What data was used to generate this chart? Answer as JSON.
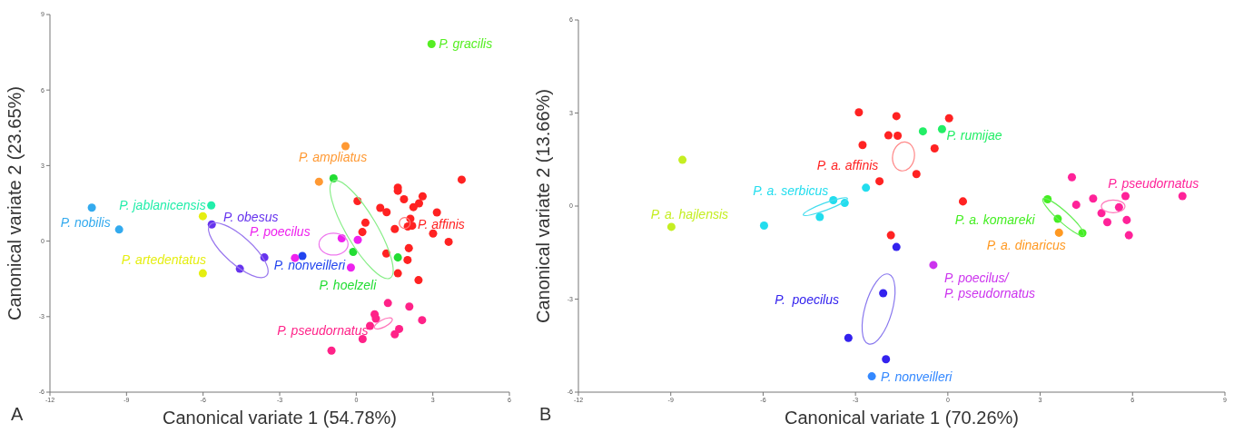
{
  "chart_data": [
    {
      "type": "scatter",
      "title": "A",
      "xlabel": "Canonical variate 1 (54.78%)",
      "ylabel": "Canonical variate 2 (23.65%)",
      "xlim": [
        -12,
        6
      ],
      "xticks": [
        -12,
        -9,
        -6,
        -3,
        0,
        3,
        6
      ],
      "ylim": [
        -6,
        9
      ],
      "yticks": [
        -6,
        -3,
        0,
        3,
        6,
        9
      ],
      "marker": "circle",
      "series": [
        {
          "name": "P. gracilis",
          "color": "#55ee22",
          "x": [
            2.95
          ],
          "values": [
            7.83
          ]
        },
        {
          "name": "P. ampliatus",
          "color": "#ff9933",
          "x": [
            -0.42,
            -1.46
          ],
          "values": [
            3.77,
            2.36
          ]
        },
        {
          "name": "P. hoelzeli",
          "color": "#22dd33",
          "x": [
            -0.89,
            -0.12,
            1.63
          ],
          "values": [
            2.49,
            -0.43,
            -0.65
          ]
        },
        {
          "name": "P. nobilis",
          "color": "#33aaee",
          "x": [
            -10.36,
            -9.29
          ],
          "values": [
            1.33,
            0.46
          ]
        },
        {
          "name": "P. jablanicensis",
          "color": "#22eeaa",
          "x": [
            -5.68
          ],
          "values": [
            1.42
          ]
        },
        {
          "name": "P. artedentatus",
          "color": "#e5ee11",
          "x": [
            -6.01,
            -6.01
          ],
          "values": [
            0.99,
            -1.28
          ]
        },
        {
          "name": "P. obesus",
          "color": "#6633ee",
          "x": [
            -5.66,
            -3.6,
            -4.56
          ],
          "values": [
            0.66,
            -0.65,
            -1.1
          ]
        },
        {
          "name": "P. nonveilleri",
          "color": "#2244ee",
          "x": [
            -2.11
          ],
          "values": [
            -0.59
          ]
        },
        {
          "name": "P. poecilus",
          "color": "#ee22ee",
          "x": [
            -0.57,
            0.06,
            -0.21,
            -2.4
          ],
          "values": [
            0.11,
            0.05,
            -1.05,
            -0.67
          ]
        },
        {
          "name": "P. affinis",
          "color": "#ff2222",
          "x": [
            0.05,
            1.63,
            1.63,
            1.87,
            2.6,
            2.46,
            2.24,
            0.94,
            1.19,
            0.36,
            0.24,
            1.51,
            2.12,
            2.02,
            2.19,
            3.16,
            3.01,
            3.62,
            4.13,
            1.18,
            2.06,
            2.01,
            1.63,
            2.44
          ],
          "values": [
            1.59,
            2.12,
            2.0,
            1.66,
            1.78,
            1.5,
            1.35,
            1.32,
            1.15,
            0.73,
            0.36,
            0.48,
            0.89,
            0.58,
            0.61,
            1.14,
            0.3,
            -0.03,
            2.44,
            -0.49,
            -0.28,
            -0.75,
            -1.28,
            -1.55
          ]
        },
        {
          "name": "P. pseudornatus",
          "color": "#ff2288",
          "x": [
            1.24,
            2.08,
            0.72,
            0.77,
            2.58,
            0.54,
            1.68,
            1.51,
            0.25,
            -0.97
          ],
          "values": [
            -2.46,
            -2.6,
            -2.91,
            -3.08,
            -3.14,
            -3.37,
            -3.49,
            -3.7,
            -3.89,
            -4.35
          ]
        }
      ]
    },
    {
      "type": "scatter",
      "title": "B",
      "xlabel": "Canonical variate 1 (70.26%)",
      "ylabel": "Canonical variate 2 (13.66%)",
      "xlim": [
        -12,
        9
      ],
      "xticks": [
        -12,
        -9,
        -6,
        -3,
        0,
        3,
        6,
        9
      ],
      "ylim": [
        -6,
        6
      ],
      "yticks": [
        -6,
        -3,
        0,
        3,
        6
      ],
      "marker": "circle",
      "series": [
        {
          "name": "P. a. hajlensis",
          "color": "#c5ee22",
          "x": [
            -8.62,
            -8.98
          ],
          "values": [
            1.49,
            -0.67
          ]
        },
        {
          "name": "P. a. serbicus",
          "color": "#22ddee",
          "x": [
            -2.66,
            -3.72,
            -3.35,
            -4.16,
            -5.97
          ],
          "values": [
            0.59,
            0.19,
            0.1,
            -0.35,
            -0.63
          ]
        },
        {
          "name": "P. a. affinis",
          "color": "#ff2222",
          "x": [
            -2.89,
            -1.67,
            0.04,
            -1.93,
            -1.63,
            -2.77,
            -0.43,
            -1.02,
            -2.22,
            0.49,
            -1.85
          ],
          "values": [
            3.02,
            2.9,
            2.83,
            2.28,
            2.27,
            1.97,
            1.86,
            1.03,
            0.8,
            0.15,
            -0.94
          ]
        },
        {
          "name": "P. rumijae",
          "color": "#22ee66",
          "x": [
            -0.81,
            -0.19
          ],
          "values": [
            2.41,
            2.48
          ]
        },
        {
          "name": "P. a. komareki",
          "color": "#44ee22",
          "x": [
            3.24,
            3.57,
            4.37
          ],
          "values": [
            0.22,
            -0.41,
            -0.87
          ]
        },
        {
          "name": "P. a. dinaricus",
          "color": "#ff9922",
          "x": [
            3.61
          ],
          "values": [
            -0.86
          ]
        },
        {
          "name": "P. pseudornatus",
          "color": "#ff2299",
          "x": [
            4.03,
            4.17,
            4.72,
            4.99,
            5.18,
            5.56,
            5.77,
            5.81,
            5.88,
            7.62
          ],
          "values": [
            0.93,
            0.04,
            0.24,
            -0.23,
            -0.52,
            -0.04,
            0.32,
            -0.45,
            -0.94,
            0.32
          ]
        },
        {
          "name": "P. poecilus/ P. pseudornatus",
          "color": "#cc33ee",
          "x": [
            -0.47
          ],
          "values": [
            -1.9
          ]
        },
        {
          "name": "P.  poecilus",
          "color": "#3322ee",
          "x": [
            -2.1,
            -1.67,
            -3.23,
            -2.01
          ],
          "values": [
            -2.81,
            -1.32,
            -4.25,
            -4.94
          ]
        },
        {
          "name": "P. nonveilleri",
          "color": "#3388ff",
          "x": [
            -2.47
          ],
          "values": [
            -5.49
          ]
        }
      ]
    }
  ]
}
